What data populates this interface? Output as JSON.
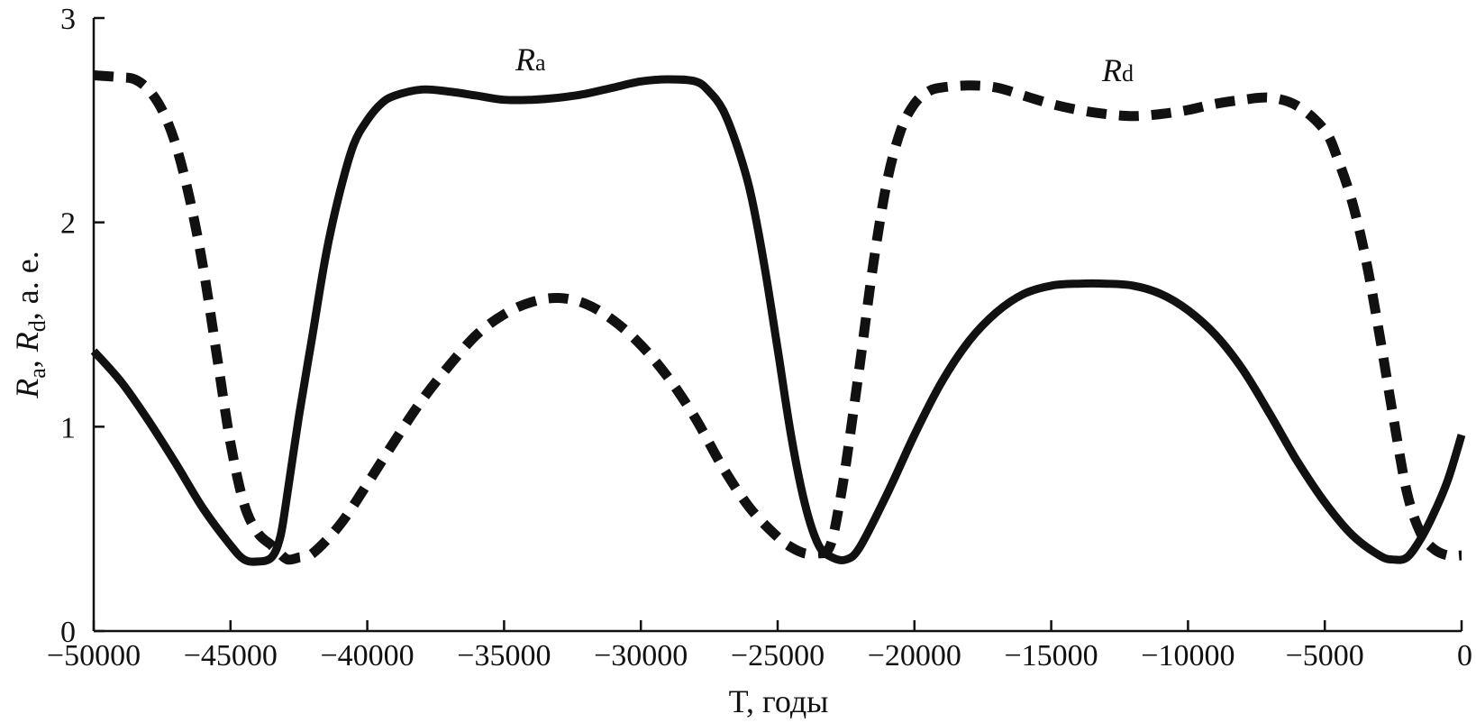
{
  "chart_data": {
    "type": "line",
    "xlabel": "T, годы",
    "ylabel_parts": [
      "R",
      "a",
      ", ",
      "R",
      "d",
      ", a. e."
    ],
    "xlim": [
      -50000,
      0
    ],
    "ylim": [
      0,
      3
    ],
    "x_ticks": [
      -50000,
      -45000,
      -40000,
      -35000,
      -30000,
      -25000,
      -20000,
      -15000,
      -10000,
      -5000,
      0
    ],
    "x_tick_labels": [
      "−50000",
      "−45000",
      "−40000",
      "−35000",
      "−30000",
      "−25000",
      "−20000",
      "−15000",
      "−10000",
      "−5000",
      "0"
    ],
    "y_ticks": [
      0,
      1,
      2,
      3
    ],
    "y_tick_labels": [
      "0",
      "1",
      "2",
      "3"
    ],
    "grid": false,
    "series": [
      {
        "name": "Ra",
        "label_main": "R",
        "label_sub": "a",
        "style": "solid",
        "color": "#111111",
        "x": [
          -50000,
          -49000,
          -48000,
          -47000,
          -46000,
          -45000,
          -44500,
          -44000,
          -43500,
          -43200,
          -43000,
          -42500,
          -42000,
          -41500,
          -41000,
          -40500,
          -40000,
          -39500,
          -39000,
          -38000,
          -37000,
          -36000,
          -35000,
          -34000,
          -33000,
          -32000,
          -31000,
          -30000,
          -29000,
          -28000,
          -27500,
          -27000,
          -26500,
          -26000,
          -25500,
          -25000,
          -24500,
          -24000,
          -23500,
          -23000,
          -22500,
          -22000,
          -21000,
          -20000,
          -19000,
          -18000,
          -17000,
          -16000,
          -15000,
          -14000,
          -13000,
          -12000,
          -11000,
          -10000,
          -9000,
          -8000,
          -7000,
          -6000,
          -5000,
          -4000,
          -3000,
          -2500,
          -2000,
          -1500,
          -1000,
          -500,
          0
        ],
        "y": [
          1.37,
          1.22,
          1.03,
          0.82,
          0.6,
          0.42,
          0.35,
          0.34,
          0.36,
          0.45,
          0.6,
          1.05,
          1.45,
          1.85,
          2.15,
          2.38,
          2.5,
          2.58,
          2.62,
          2.65,
          2.64,
          2.62,
          2.6,
          2.6,
          2.61,
          2.63,
          2.66,
          2.69,
          2.7,
          2.69,
          2.64,
          2.55,
          2.38,
          2.15,
          1.8,
          1.38,
          0.95,
          0.62,
          0.42,
          0.36,
          0.35,
          0.41,
          0.67,
          0.96,
          1.22,
          1.42,
          1.56,
          1.65,
          1.69,
          1.7,
          1.7,
          1.69,
          1.65,
          1.57,
          1.45,
          1.28,
          1.06,
          0.83,
          0.63,
          0.47,
          0.37,
          0.35,
          0.36,
          0.45,
          0.58,
          0.74,
          0.96
        ]
      },
      {
        "name": "Rd",
        "label_main": "R",
        "label_sub": "d",
        "style": "dashed",
        "color": "#111111",
        "x": [
          -50000,
          -49000,
          -48500,
          -48000,
          -47500,
          -47000,
          -46500,
          -46000,
          -45500,
          -45000,
          -44500,
          -44000,
          -43500,
          -43200,
          -42900,
          -42500,
          -42000,
          -41000,
          -40000,
          -39000,
          -38000,
          -37000,
          -36000,
          -35000,
          -34000,
          -33000,
          -32000,
          -31000,
          -30000,
          -29000,
          -28000,
          -27000,
          -26000,
          -25000,
          -24500,
          -24000,
          -23500,
          -23200,
          -23000,
          -22800,
          -22500,
          -22000,
          -21500,
          -21000,
          -20500,
          -20000,
          -19500,
          -19000,
          -18000,
          -17000,
          -16000,
          -15000,
          -14000,
          -13000,
          -12000,
          -11000,
          -10000,
          -9000,
          -8000,
          -7000,
          -6000,
          -5000,
          -4500,
          -4000,
          -3500,
          -3000,
          -2500,
          -2000,
          -1500,
          -1000,
          -500,
          0
        ],
        "y": [
          2.72,
          2.71,
          2.7,
          2.65,
          2.55,
          2.38,
          2.12,
          1.78,
          1.35,
          0.92,
          0.62,
          0.48,
          0.42,
          0.38,
          0.35,
          0.36,
          0.38,
          0.52,
          0.72,
          0.93,
          1.13,
          1.3,
          1.45,
          1.55,
          1.61,
          1.63,
          1.6,
          1.52,
          1.4,
          1.24,
          1.04,
          0.8,
          0.6,
          0.46,
          0.41,
          0.38,
          0.38,
          0.39,
          0.45,
          0.58,
          0.82,
          1.3,
          1.8,
          2.2,
          2.45,
          2.58,
          2.64,
          2.66,
          2.67,
          2.66,
          2.62,
          2.58,
          2.55,
          2.53,
          2.52,
          2.53,
          2.55,
          2.58,
          2.6,
          2.61,
          2.57,
          2.45,
          2.3,
          2.1,
          1.82,
          1.45,
          1.05,
          0.68,
          0.48,
          0.4,
          0.37,
          0.37
        ]
      }
    ]
  }
}
